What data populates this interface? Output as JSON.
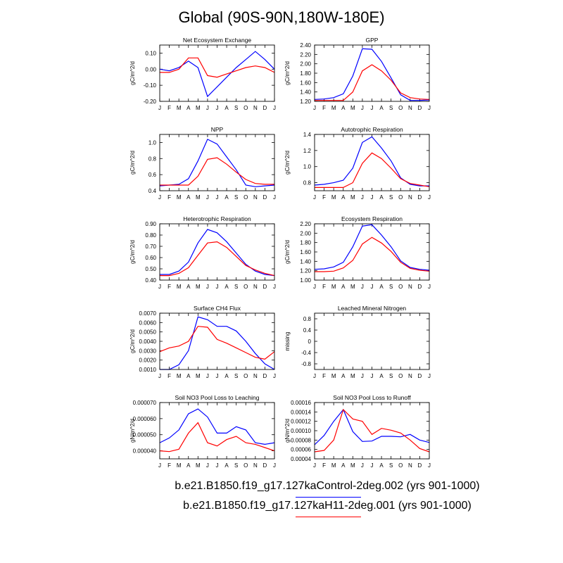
{
  "title": "Global (90S-90N,180W-180E)",
  "colors": {
    "control": "#0000ff",
    "h11": "#ff0000"
  },
  "legend": [
    {
      "label": "b.e21.B1850.f19_g17.127kaControl-2deg.002 (yrs 901-1000)",
      "color": "#0000ff"
    },
    {
      "label": "b.e21.B1850.f19_g17.127kaH11-2deg.001 (yrs 901-1000)",
      "color": "#ff0000"
    }
  ],
  "chart_data": [
    {
      "type": "line",
      "title": "Net Ecosystem Exchange",
      "ylabel": "gC/m^2/d",
      "x": [
        "J",
        "F",
        "M",
        "A",
        "M",
        "J",
        "J",
        "A",
        "S",
        "O",
        "N",
        "D",
        "J"
      ],
      "ylim": [
        -0.2,
        0.15
      ],
      "yticks": [
        -0.2,
        -0.1,
        0.0,
        0.1
      ],
      "ytick_labels": [
        "-0.20",
        "-0.10",
        "0.00",
        "0.10"
      ],
      "series": [
        {
          "name": "b.e21.B1850.f19_g17.127kaControl-2deg.002",
          "values": [
            0.0,
            -0.01,
            0.01,
            0.05,
            0.01,
            -0.17,
            -0.11,
            -0.05,
            0.01,
            0.06,
            0.11,
            0.06,
            0.0
          ]
        },
        {
          "name": "b.e21.B1850.f19_g17.127kaH11-2deg.001",
          "values": [
            -0.02,
            -0.02,
            0.0,
            0.07,
            0.07,
            -0.04,
            -0.05,
            -0.03,
            -0.01,
            0.01,
            0.02,
            0.01,
            -0.02
          ]
        }
      ]
    },
    {
      "type": "line",
      "title": "GPP",
      "ylabel": "gC/m^2/d",
      "x": [
        "J",
        "F",
        "M",
        "A",
        "M",
        "J",
        "J",
        "A",
        "S",
        "O",
        "N",
        "D",
        "J"
      ],
      "ylim": [
        1.2,
        2.4
      ],
      "yticks": [
        1.2,
        1.4,
        1.6,
        1.8,
        2.0,
        2.2,
        2.4
      ],
      "ytick_labels": [
        "1.20",
        "1.40",
        "1.60",
        "1.80",
        "2.00",
        "2.20",
        "2.40"
      ],
      "series": [
        {
          "name": "b.e21.B1850.f19_g17.127kaControl-2deg.002",
          "values": [
            1.24,
            1.25,
            1.28,
            1.36,
            1.74,
            2.32,
            2.31,
            2.05,
            1.7,
            1.34,
            1.22,
            1.22,
            1.23
          ]
        },
        {
          "name": "b.e21.B1850.f19_g17.127kaH11-2deg.001",
          "values": [
            1.22,
            1.22,
            1.22,
            1.22,
            1.4,
            1.85,
            1.98,
            1.85,
            1.65,
            1.38,
            1.28,
            1.25,
            1.24
          ]
        }
      ]
    },
    {
      "type": "line",
      "title": "NPP",
      "ylabel": "gC/m^2/d",
      "x": [
        "J",
        "F",
        "M",
        "A",
        "M",
        "J",
        "J",
        "A",
        "S",
        "O",
        "N",
        "D",
        "J"
      ],
      "ylim": [
        0.4,
        1.1
      ],
      "yticks": [
        0.4,
        0.6,
        0.8,
        1.0
      ],
      "ytick_labels": [
        "0.4",
        "0.6",
        "0.8",
        "1.0"
      ],
      "series": [
        {
          "name": "b.e21.B1850.f19_g17.127kaControl-2deg.002",
          "values": [
            0.46,
            0.47,
            0.48,
            0.55,
            0.77,
            1.04,
            0.98,
            0.82,
            0.66,
            0.47,
            0.45,
            0.46,
            0.47
          ]
        },
        {
          "name": "b.e21.B1850.f19_g17.127kaH11-2deg.001",
          "values": [
            0.47,
            0.47,
            0.47,
            0.47,
            0.58,
            0.79,
            0.81,
            0.73,
            0.63,
            0.54,
            0.49,
            0.48,
            0.48
          ]
        }
      ]
    },
    {
      "type": "line",
      "title": "Autotrophic Respiration",
      "ylabel": "gC/m^2/d",
      "x": [
        "J",
        "F",
        "M",
        "A",
        "M",
        "J",
        "J",
        "A",
        "S",
        "O",
        "N",
        "D",
        "J"
      ],
      "ylim": [
        0.7,
        1.4
      ],
      "yticks": [
        0.8,
        1.0,
        1.2,
        1.4
      ],
      "ytick_labels": [
        "0.8",
        "1.0",
        "1.2",
        "1.4"
      ],
      "series": [
        {
          "name": "b.e21.B1850.f19_g17.127kaControl-2deg.002",
          "values": [
            0.77,
            0.78,
            0.8,
            0.83,
            0.98,
            1.3,
            1.37,
            1.23,
            1.07,
            0.86,
            0.78,
            0.76,
            0.76
          ]
        },
        {
          "name": "b.e21.B1850.f19_g17.127kaH11-2deg.001",
          "values": [
            0.74,
            0.74,
            0.74,
            0.74,
            0.8,
            1.04,
            1.17,
            1.1,
            0.98,
            0.85,
            0.79,
            0.77,
            0.75
          ]
        }
      ]
    },
    {
      "type": "line",
      "title": "Heterotrophic Respiration",
      "ylabel": "gC/m^2/d",
      "x": [
        "J",
        "F",
        "M",
        "A",
        "M",
        "J",
        "J",
        "A",
        "S",
        "O",
        "N",
        "D",
        "J"
      ],
      "ylim": [
        0.4,
        0.9
      ],
      "yticks": [
        0.4,
        0.5,
        0.6,
        0.7,
        0.8,
        0.9
      ],
      "ytick_labels": [
        "0.40",
        "0.50",
        "0.60",
        "0.70",
        "0.80",
        "0.90"
      ],
      "series": [
        {
          "name": "b.e21.B1850.f19_g17.127kaControl-2deg.002",
          "values": [
            0.45,
            0.45,
            0.48,
            0.56,
            0.73,
            0.85,
            0.82,
            0.74,
            0.64,
            0.54,
            0.48,
            0.45,
            0.44
          ]
        },
        {
          "name": "b.e21.B1850.f19_g17.127kaH11-2deg.001",
          "values": [
            0.44,
            0.44,
            0.46,
            0.51,
            0.62,
            0.73,
            0.74,
            0.69,
            0.61,
            0.53,
            0.49,
            0.46,
            0.44
          ]
        }
      ]
    },
    {
      "type": "line",
      "title": "Ecosystem Respiration",
      "ylabel": "gC/m^2/d",
      "x": [
        "J",
        "F",
        "M",
        "A",
        "M",
        "J",
        "J",
        "A",
        "S",
        "O",
        "N",
        "D",
        "J"
      ],
      "ylim": [
        1.0,
        2.2
      ],
      "yticks": [
        1.0,
        1.2,
        1.4,
        1.6,
        1.8,
        2.0,
        2.2
      ],
      "ytick_labels": [
        "1.00",
        "1.20",
        "1.40",
        "1.60",
        "1.80",
        "2.00",
        "2.20"
      ],
      "series": [
        {
          "name": "b.e21.B1850.f19_g17.127kaControl-2deg.002",
          "values": [
            1.23,
            1.24,
            1.28,
            1.38,
            1.71,
            2.15,
            2.18,
            1.96,
            1.71,
            1.41,
            1.27,
            1.23,
            1.21
          ]
        },
        {
          "name": "b.e21.B1850.f19_g17.127kaH11-2deg.001",
          "values": [
            1.18,
            1.18,
            1.19,
            1.26,
            1.42,
            1.77,
            1.91,
            1.79,
            1.61,
            1.38,
            1.25,
            1.21,
            1.19
          ]
        }
      ]
    },
    {
      "type": "line",
      "title": "Surface CH4 Flux",
      "ylabel": "gC/m^2/d",
      "x": [
        "J",
        "F",
        "M",
        "A",
        "M",
        "J",
        "J",
        "A",
        "S",
        "O",
        "N",
        "D",
        "J"
      ],
      "ylim": [
        0.001,
        0.007
      ],
      "yticks": [
        0.001,
        0.002,
        0.003,
        0.004,
        0.005,
        0.006,
        0.007
      ],
      "ytick_labels": [
        "0.0010",
        "0.0020",
        "0.0030",
        "0.0040",
        "0.0050",
        "0.0060",
        "0.0070"
      ],
      "series": [
        {
          "name": "b.e21.B1850.f19_g17.127kaControl-2deg.002",
          "values": [
            0.001,
            0.001,
            0.0015,
            0.003,
            0.0066,
            0.0063,
            0.0056,
            0.0056,
            0.0051,
            0.004,
            0.0027,
            0.0016,
            0.001
          ]
        },
        {
          "name": "b.e21.B1850.f19_g17.127kaH11-2deg.001",
          "values": [
            0.0029,
            0.0033,
            0.0035,
            0.004,
            0.0056,
            0.0055,
            0.0042,
            0.0038,
            0.0033,
            0.0028,
            0.0023,
            0.0021,
            0.0029
          ]
        }
      ]
    },
    {
      "type": "line",
      "title": "Leached Mineral Nitrogen",
      "ylabel": "missing",
      "x": [
        "J",
        "F",
        "M",
        "A",
        "M",
        "J",
        "J",
        "A",
        "S",
        "O",
        "N",
        "D",
        "J"
      ],
      "ylim": [
        -1.0,
        1.0
      ],
      "yticks": [
        -0.8,
        -0.4,
        0,
        0.4,
        0.8
      ],
      "ytick_labels": [
        "-0.8",
        "-0.4",
        "0",
        "0.4",
        "0.8"
      ],
      "series": []
    },
    {
      "type": "line",
      "title": "Soil NO3 Pool Loss to Leaching",
      "ylabel": "gN/m^2/d",
      "x": [
        "J",
        "F",
        "M",
        "A",
        "M",
        "J",
        "J",
        "A",
        "S",
        "O",
        "N",
        "D",
        "J"
      ],
      "ylim": [
        3.5e-05,
        7e-05
      ],
      "yticks": [
        4e-05,
        5e-05,
        6e-05,
        7e-05
      ],
      "ytick_labels": [
        "0.000040",
        "0.000050",
        "0.000060",
        "0.000070"
      ],
      "series": [
        {
          "name": "b.e21.B1850.f19_g17.127kaControl-2deg.002",
          "values": [
            4.5e-05,
            4.8e-05,
            5.3e-05,
            6.3e-05,
            6.6e-05,
            6.1e-05,
            5.1e-05,
            5.1e-05,
            5.5e-05,
            5.3e-05,
            4.5e-05,
            4.4e-05,
            4.5e-05
          ]
        },
        {
          "name": "b.e21.B1850.f19_g17.127kaH11-2deg.001",
          "values": [
            4e-05,
            3.95e-05,
            4.1e-05,
            5.1e-05,
            5.75e-05,
            4.5e-05,
            4.3e-05,
            4.7e-05,
            4.9e-05,
            4.5e-05,
            4.4e-05,
            4.2e-05,
            4e-05
          ]
        }
      ]
    },
    {
      "type": "line",
      "title": "Soil NO3 Pool Loss to Runoff",
      "ylabel": "gN/m^2/d",
      "x": [
        "J",
        "F",
        "M",
        "A",
        "M",
        "J",
        "J",
        "A",
        "S",
        "O",
        "N",
        "D",
        "J"
      ],
      "ylim": [
        4e-05,
        0.00016
      ],
      "yticks": [
        4e-05,
        6e-05,
        8e-05,
        0.0001,
        0.00012,
        0.00014,
        0.00016
      ],
      "ytick_labels": [
        "0.00004",
        "0.00006",
        "0.00008",
        "0.00010",
        "0.00012",
        "0.00014",
        "0.00016"
      ],
      "series": [
        {
          "name": "b.e21.B1850.f19_g17.127kaControl-2deg.002",
          "values": [
            7e-05,
            9e-05,
            0.00012,
            0.000145,
            9.8e-05,
            7.7e-05,
            7.8e-05,
            8.8e-05,
            8.8e-05,
            8.7e-05,
            9.2e-05,
            8e-05,
            7.5e-05
          ]
        },
        {
          "name": "b.e21.B1850.f19_g17.127kaH11-2deg.001",
          "values": [
            5.5e-05,
            5.8e-05,
            8e-05,
            0.000145,
            0.000125,
            0.00012,
            9.2e-05,
            0.000105,
            0.000101,
            9.5e-05,
            8e-05,
            6.2e-05,
            5.5e-05
          ]
        }
      ]
    }
  ]
}
